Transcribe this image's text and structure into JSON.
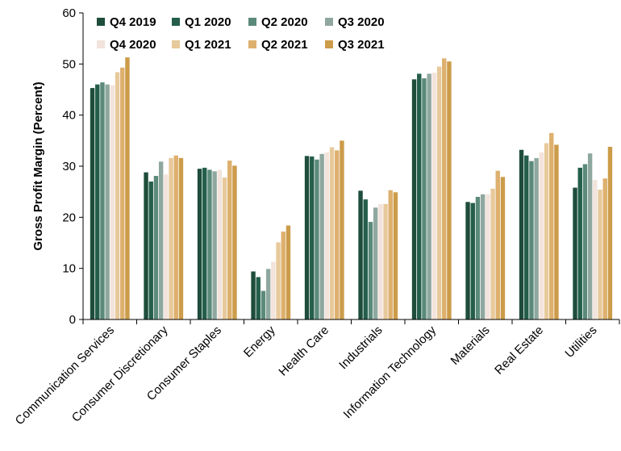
{
  "chart_data": {
    "type": "bar",
    "title": "",
    "xlabel": "",
    "ylabel": "Gross Profit Margin (Percent)",
    "ylim": [
      0,
      60
    ],
    "yticks": [
      0,
      10,
      20,
      30,
      40,
      50,
      60
    ],
    "grid": false,
    "legend_position": "top-left",
    "categories": [
      "Communication Services",
      "Consumer Discretionary",
      "Consumer Staples",
      "Energy",
      "Health Care",
      "Industrials",
      "Information Technology",
      "Materials",
      "Real Estate",
      "Utilities"
    ],
    "series": [
      {
        "name": "Q4 2019",
        "color": "#1e4d3b",
        "values": [
          45.3,
          28.8,
          29.5,
          9.4,
          32.0,
          25.2,
          47.0,
          23.0,
          33.2,
          25.8
        ]
      },
      {
        "name": "Q1 2020",
        "color": "#245e4b",
        "values": [
          46.0,
          27.0,
          29.7,
          8.3,
          31.9,
          23.5,
          48.1,
          22.8,
          32.1,
          29.7
        ]
      },
      {
        "name": "Q2 2020",
        "color": "#5b8a7a",
        "values": [
          46.4,
          28.1,
          29.3,
          5.6,
          31.3,
          19.1,
          47.2,
          24.0,
          31.0,
          30.4
        ]
      },
      {
        "name": "Q3 2020",
        "color": "#8fa89f",
        "values": [
          46.0,
          30.9,
          29.0,
          9.9,
          32.4,
          21.9,
          48.1,
          24.5,
          31.6,
          32.5
        ]
      },
      {
        "name": "Q4 2020",
        "color": "#f2e3dc",
        "values": [
          45.8,
          28.4,
          29.3,
          11.3,
          32.7,
          22.6,
          48.3,
          24.5,
          32.7,
          27.3
        ]
      },
      {
        "name": "Q1 2021",
        "color": "#e7c99b",
        "values": [
          48.4,
          31.6,
          27.8,
          15.1,
          33.7,
          22.6,
          49.5,
          25.6,
          34.5,
          25.4
        ]
      },
      {
        "name": "Q2 2021",
        "color": "#ddb06d",
        "values": [
          49.3,
          32.1,
          31.1,
          17.2,
          33.1,
          25.3,
          51.1,
          29.1,
          36.5,
          27.6
        ]
      },
      {
        "name": "Q3 2021",
        "color": "#cc9c4a",
        "values": [
          51.3,
          31.6,
          30.1,
          18.4,
          35.0,
          24.9,
          50.5,
          27.9,
          34.2,
          33.8
        ]
      }
    ]
  }
}
